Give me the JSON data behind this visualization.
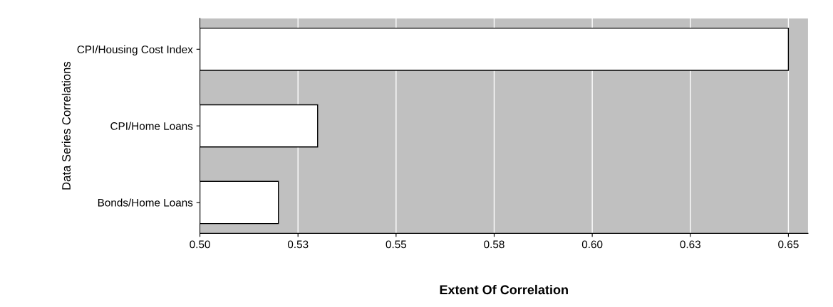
{
  "chart_data": {
    "type": "bar",
    "orientation": "horizontal",
    "categories": [
      "CPI/Housing Cost Index",
      "CPI/Home Loans",
      "Bonds/Home Loans"
    ],
    "values": [
      0.65,
      0.53,
      0.52
    ],
    "color": "#ffffff",
    "xlim": [
      0.5,
      0.655
    ],
    "xticks": [
      {
        "value": 0.5,
        "label": "0.50"
      },
      {
        "value": 0.525,
        "label": "0.53"
      },
      0.55,
      {
        "value": 0.575,
        "label": "0.58"
      },
      {
        "value": 0.6,
        "label": "0.60"
      },
      {
        "value": 0.625,
        "label": "0.63"
      },
      0.65
    ],
    "xlabel": "Extent Of Correlation",
    "ylabel": "Data Series Correlations",
    "grid": "x"
  }
}
